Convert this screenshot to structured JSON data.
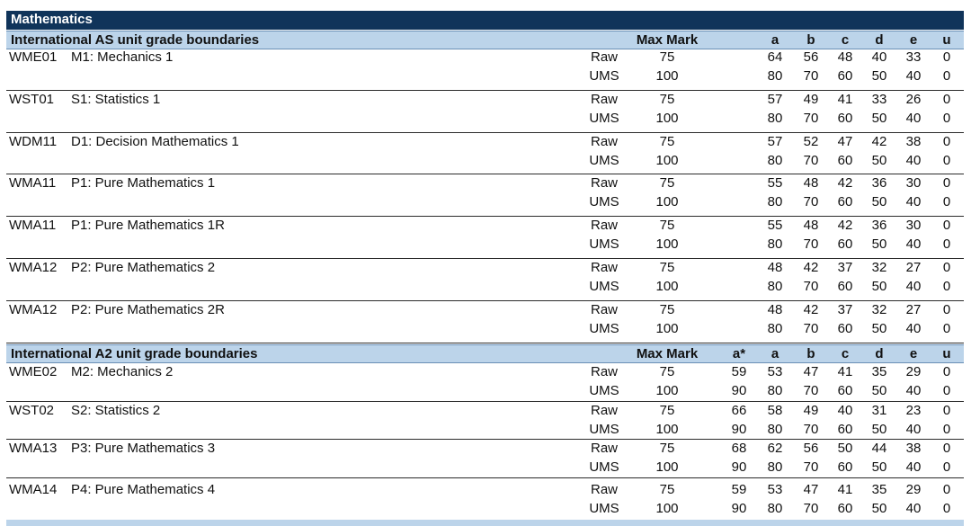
{
  "subject": "Mathematics",
  "headers": {
    "max_mark": "Max Mark",
    "astar": "a*",
    "a": "a",
    "b": "b",
    "c": "c",
    "d": "d",
    "e": "e",
    "u": "u"
  },
  "as_section": {
    "title": "International AS unit grade boundaries",
    "units": [
      {
        "code": "WME01",
        "name": "M1: Mechanics 1",
        "raw": {
          "label": "Raw",
          "max": "75",
          "grades": [
            "64",
            "56",
            "48",
            "40",
            "33",
            "0"
          ]
        },
        "ums": {
          "label": "UMS",
          "max": "100",
          "grades": [
            "80",
            "70",
            "60",
            "50",
            "40",
            "0"
          ]
        }
      },
      {
        "code": "WST01",
        "name": "S1: Statistics 1",
        "raw": {
          "label": "Raw",
          "max": "75",
          "grades": [
            "57",
            "49",
            "41",
            "33",
            "26",
            "0"
          ]
        },
        "ums": {
          "label": "UMS",
          "max": "100",
          "grades": [
            "80",
            "70",
            "60",
            "50",
            "40",
            "0"
          ]
        }
      },
      {
        "code": "WDM11",
        "name": "D1: Decision Mathematics 1",
        "raw": {
          "label": "Raw",
          "max": "75",
          "grades": [
            "57",
            "52",
            "47",
            "42",
            "38",
            "0"
          ]
        },
        "ums": {
          "label": "UMS",
          "max": "100",
          "grades": [
            "80",
            "70",
            "60",
            "50",
            "40",
            "0"
          ]
        }
      },
      {
        "code": "WMA11",
        "name": "P1: Pure Mathematics 1",
        "raw": {
          "label": "Raw",
          "max": "75",
          "grades": [
            "55",
            "48",
            "42",
            "36",
            "30",
            "0"
          ]
        },
        "ums": {
          "label": "UMS",
          "max": "100",
          "grades": [
            "80",
            "70",
            "60",
            "50",
            "40",
            "0"
          ]
        }
      },
      {
        "code": "WMA11",
        "name": "P1: Pure Mathematics 1R",
        "raw": {
          "label": "Raw",
          "max": "75",
          "grades": [
            "55",
            "48",
            "42",
            "36",
            "30",
            "0"
          ]
        },
        "ums": {
          "label": "UMS",
          "max": "100",
          "grades": [
            "80",
            "70",
            "60",
            "50",
            "40",
            "0"
          ]
        }
      },
      {
        "code": "WMA12",
        "name": "P2: Pure Mathematics 2",
        "raw": {
          "label": "Raw",
          "max": "75",
          "grades": [
            "48",
            "42",
            "37",
            "32",
            "27",
            "0"
          ]
        },
        "ums": {
          "label": "UMS",
          "max": "100",
          "grades": [
            "80",
            "70",
            "60",
            "50",
            "40",
            "0"
          ]
        }
      },
      {
        "code": "WMA12",
        "name": "P2: Pure Mathematics 2R",
        "raw": {
          "label": "Raw",
          "max": "75",
          "grades": [
            "48",
            "42",
            "37",
            "32",
            "27",
            "0"
          ]
        },
        "ums": {
          "label": "UMS",
          "max": "100",
          "grades": [
            "80",
            "70",
            "60",
            "50",
            "40",
            "0"
          ]
        }
      }
    ]
  },
  "a2_section": {
    "title": "International A2 unit grade boundaries",
    "units": [
      {
        "code": "WME02",
        "name": "M2: Mechanics 2",
        "raw": {
          "label": "Raw",
          "max": "75",
          "grades": [
            "59",
            "53",
            "47",
            "41",
            "35",
            "29",
            "0"
          ]
        },
        "ums": {
          "label": "UMS",
          "max": "100",
          "grades": [
            "90",
            "80",
            "70",
            "60",
            "50",
            "40",
            "0"
          ]
        }
      },
      {
        "code": "WST02",
        "name": "S2: Statistics 2",
        "raw": {
          "label": "Raw",
          "max": "75",
          "grades": [
            "66",
            "58",
            "49",
            "40",
            "31",
            "23",
            "0"
          ]
        },
        "ums": {
          "label": "UMS",
          "max": "100",
          "grades": [
            "90",
            "80",
            "70",
            "60",
            "50",
            "40",
            "0"
          ]
        }
      },
      {
        "code": "WMA13",
        "name": "P3: Pure Mathematics 3",
        "raw": {
          "label": "Raw",
          "max": "75",
          "grades": [
            "68",
            "62",
            "56",
            "50",
            "44",
            "38",
            "0"
          ]
        },
        "ums": {
          "label": "UMS",
          "max": "100",
          "grades": [
            "90",
            "80",
            "70",
            "60",
            "50",
            "40",
            "0"
          ]
        }
      },
      {
        "code": "WMA14",
        "name": "P4: Pure Mathematics 4",
        "raw": {
          "label": "Raw",
          "max": "75",
          "grades": [
            "59",
            "53",
            "47",
            "41",
            "35",
            "29",
            "0"
          ]
        },
        "ums": {
          "label": "UMS",
          "max": "100",
          "grades": [
            "90",
            "80",
            "70",
            "60",
            "50",
            "40",
            "0"
          ]
        }
      }
    ]
  }
}
